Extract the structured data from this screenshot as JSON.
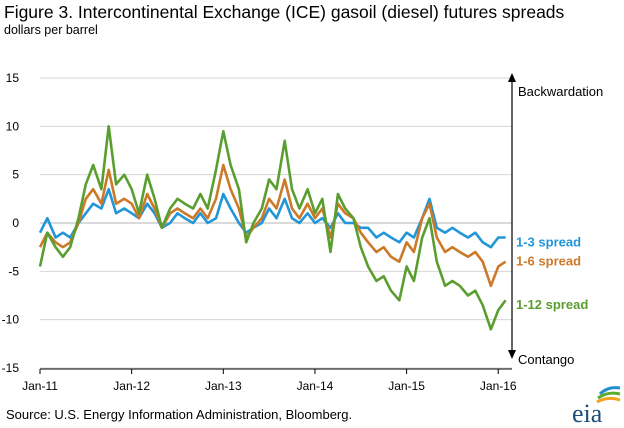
{
  "header": {
    "title": "Figure 3. Intercontinental Exchange (ICE) gasoil (diesel) futures spreads",
    "subtitle": "dollars per barrel"
  },
  "footer": {
    "source": "Source: U.S. Energy Information Administration, Bloomberg."
  },
  "logo": {
    "text": "eia"
  },
  "annotations": {
    "top": "Backwardation",
    "bottom": "Contango"
  },
  "chart_data": {
    "type": "line",
    "y_ticks": [
      15,
      10,
      5,
      0,
      -5,
      -10,
      -15
    ],
    "ylim": [
      -15,
      15
    ],
    "x_ticks": [
      "Jan-11",
      "Jan-12",
      "Jan-13",
      "Jan-14",
      "Jan-15",
      "Jan-16"
    ],
    "x_tick_positions": [
      2011,
      2012,
      2013,
      2014,
      2015,
      2016
    ],
    "xlim": [
      2011,
      2016.15
    ],
    "grid": "horizontal",
    "colors": {
      "s13": "#2196d8",
      "s16": "#cc7a29",
      "s112": "#5a9e2f"
    },
    "x": [
      2011.0,
      2011.08,
      2011.17,
      2011.25,
      2011.33,
      2011.42,
      2011.5,
      2011.58,
      2011.67,
      2011.75,
      2011.83,
      2011.92,
      2012.0,
      2012.08,
      2012.17,
      2012.25,
      2012.33,
      2012.42,
      2012.5,
      2012.58,
      2012.67,
      2012.75,
      2012.83,
      2012.92,
      2013.0,
      2013.08,
      2013.17,
      2013.25,
      2013.33,
      2013.42,
      2013.5,
      2013.58,
      2013.67,
      2013.75,
      2013.83,
      2013.92,
      2014.0,
      2014.08,
      2014.17,
      2014.25,
      2014.33,
      2014.42,
      2014.5,
      2014.58,
      2014.67,
      2014.75,
      2014.83,
      2014.92,
      2015.0,
      2015.08,
      2015.17,
      2015.25,
      2015.33,
      2015.42,
      2015.5,
      2015.58,
      2015.67,
      2015.75,
      2015.83,
      2015.92,
      2016.0,
      2016.08
    ],
    "series": [
      {
        "name": "1-3 spread",
        "values": [
          -1.0,
          0.5,
          -1.5,
          -1.0,
          -1.5,
          0.0,
          1.0,
          2.0,
          1.5,
          3.5,
          1.0,
          1.5,
          1.0,
          0.5,
          2.0,
          1.0,
          -0.5,
          0.0,
          1.0,
          0.5,
          0.0,
          1.0,
          0.0,
          0.5,
          3.0,
          1.5,
          0.0,
          -1.0,
          -0.5,
          0.0,
          1.5,
          0.5,
          2.5,
          0.5,
          0.0,
          1.0,
          0.0,
          0.5,
          -0.5,
          1.0,
          0.0,
          0.0,
          -0.5,
          -0.5,
          -1.5,
          -1.0,
          -1.5,
          -2.0,
          -1.0,
          -1.5,
          0.5,
          2.5,
          -0.5,
          -1.0,
          -0.5,
          -1.0,
          -1.5,
          -1.0,
          -2.0,
          -2.5,
          -1.5,
          -1.5
        ]
      },
      {
        "name": "1-6 spread",
        "values": [
          -2.5,
          -1.0,
          -2.0,
          -2.5,
          -2.0,
          0.0,
          2.5,
          3.5,
          2.0,
          5.5,
          2.0,
          2.5,
          2.0,
          0.5,
          3.0,
          1.5,
          -0.5,
          1.0,
          1.5,
          1.0,
          0.5,
          1.5,
          0.5,
          2.5,
          6.0,
          3.5,
          1.5,
          -1.5,
          -0.5,
          0.5,
          2.5,
          1.5,
          4.5,
          1.5,
          0.5,
          2.0,
          0.5,
          1.5,
          -1.5,
          2.0,
          1.0,
          0.5,
          -1.0,
          -2.0,
          -3.0,
          -2.5,
          -3.5,
          -4.0,
          -2.0,
          -3.0,
          0.5,
          2.0,
          -1.5,
          -3.0,
          -2.5,
          -3.0,
          -3.5,
          -3.0,
          -4.0,
          -6.5,
          -4.5,
          -4.0
        ]
      },
      {
        "name": "1-12 spread",
        "values": [
          -4.5,
          -1.0,
          -2.5,
          -3.5,
          -2.5,
          0.5,
          4.0,
          6.0,
          3.5,
          10.0,
          4.0,
          5.0,
          3.5,
          1.0,
          5.0,
          2.5,
          -0.5,
          1.5,
          2.5,
          2.0,
          1.5,
          3.0,
          1.5,
          5.5,
          9.5,
          6.0,
          3.5,
          -2.0,
          0.0,
          1.5,
          4.5,
          3.5,
          8.5,
          3.5,
          1.5,
          3.5,
          1.0,
          2.5,
          -3.0,
          3.0,
          1.5,
          0.5,
          -2.5,
          -4.5,
          -6.0,
          -5.5,
          -7.0,
          -8.0,
          -4.5,
          -6.0,
          -1.5,
          0.5,
          -4.0,
          -6.5,
          -6.0,
          -6.5,
          -7.5,
          -7.0,
          -8.5,
          -11.0,
          -9.0,
          -8.0
        ]
      }
    ]
  }
}
